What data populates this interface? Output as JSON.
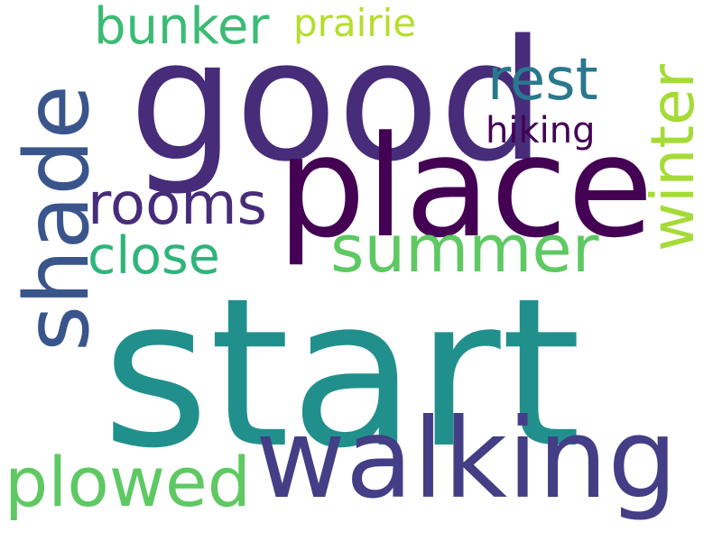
{
  "words": [
    {
      "text": "start",
      "color": "#21908d"
    },
    {
      "text": "good",
      "color": "#472c7a"
    },
    {
      "text": "place",
      "color": "#440154"
    },
    {
      "text": "walking",
      "color": "#433e85"
    },
    {
      "text": "shade",
      "color": "#39558c"
    },
    {
      "text": "summer",
      "color": "#5ec962"
    },
    {
      "text": "winter",
      "color": "#a5db36"
    },
    {
      "text": "plowed",
      "color": "#5ec962"
    },
    {
      "text": "rooms",
      "color": "#472c7a"
    },
    {
      "text": "rest",
      "color": "#2a788e"
    },
    {
      "text": "bunker",
      "color": "#3bbb75"
    },
    {
      "text": "close",
      "color": "#2fb47c"
    },
    {
      "text": "hiking",
      "color": "#440154"
    },
    {
      "text": "prairie",
      "color": "#b5de2b"
    }
  ]
}
